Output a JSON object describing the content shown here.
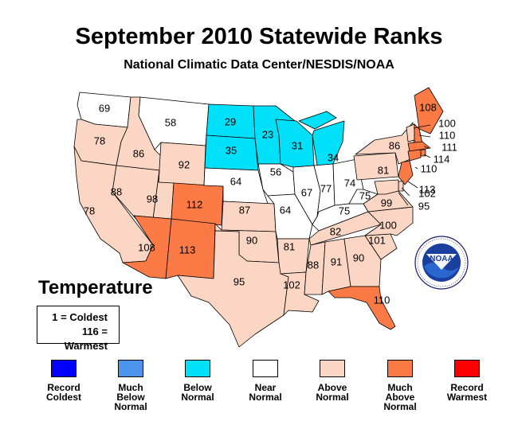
{
  "title": "September 2010 Statewide Ranks",
  "subtitle": "National Climatic Data Center/NESDIS/NOAA",
  "panel_label": "Temperature",
  "key": [
    "1 = Coldest",
    "116 = Warmest"
  ],
  "colors": {
    "record_coldest": "#0000ff",
    "much_below": "#4a94ee",
    "below": "#00e0f8",
    "near": "#ffffff",
    "above": "#fcd6c4",
    "much_above": "#fb7a45",
    "record_warmest": "#ff0000"
  },
  "legend": [
    {
      "label": "Record\nColdest",
      "category": "record_coldest"
    },
    {
      "label": "Much\nBelow\nNormal",
      "category": "much_below"
    },
    {
      "label": "Below\nNormal",
      "category": "below"
    },
    {
      "label": "Near\nNormal",
      "category": "near"
    },
    {
      "label": "Above\nNormal",
      "category": "above"
    },
    {
      "label": "Much\nAbove\nNormal",
      "category": "much_above"
    },
    {
      "label": "Record\nWarmest",
      "category": "record_warmest"
    }
  ],
  "logo_text": "NOAA",
  "states": [
    {
      "state": "WA",
      "rank": "69",
      "category": "near"
    },
    {
      "state": "OR",
      "rank": "78",
      "category": "above"
    },
    {
      "state": "CA",
      "rank": "78",
      "category": "above"
    },
    {
      "state": "ID",
      "rank": "86",
      "category": "above"
    },
    {
      "state": "NV",
      "rank": "88",
      "category": "above"
    },
    {
      "state": "MT",
      "rank": "58",
      "category": "near"
    },
    {
      "state": "WY",
      "rank": "92",
      "category": "above"
    },
    {
      "state": "UT",
      "rank": "98",
      "category": "above"
    },
    {
      "state": "AZ",
      "rank": "108",
      "category": "much_above"
    },
    {
      "state": "CO",
      "rank": "112",
      "category": "much_above"
    },
    {
      "state": "NM",
      "rank": "113",
      "category": "much_above"
    },
    {
      "state": "ND",
      "rank": "29",
      "category": "below"
    },
    {
      "state": "SD",
      "rank": "35",
      "category": "below"
    },
    {
      "state": "NE",
      "rank": "64",
      "category": "near"
    },
    {
      "state": "KS",
      "rank": "87",
      "category": "above"
    },
    {
      "state": "OK",
      "rank": "90",
      "category": "above"
    },
    {
      "state": "TX",
      "rank": "95",
      "category": "above"
    },
    {
      "state": "MN",
      "rank": "23",
      "category": "below"
    },
    {
      "state": "IA",
      "rank": "56",
      "category": "near"
    },
    {
      "state": "MO",
      "rank": "64",
      "category": "near"
    },
    {
      "state": "AR",
      "rank": "81",
      "category": "above"
    },
    {
      "state": "LA",
      "rank": "102",
      "category": "above"
    },
    {
      "state": "WI",
      "rank": "31",
      "category": "below"
    },
    {
      "state": "IL",
      "rank": "67",
      "category": "near"
    },
    {
      "state": "MI",
      "rank": "34",
      "category": "below"
    },
    {
      "state": "IN",
      "rank": "77",
      "category": "near"
    },
    {
      "state": "OH",
      "rank": "74",
      "category": "near"
    },
    {
      "state": "KY",
      "rank": "75",
      "category": "near"
    },
    {
      "state": "TN",
      "rank": "82",
      "category": "above"
    },
    {
      "state": "MS",
      "rank": "88",
      "category": "above"
    },
    {
      "state": "AL",
      "rank": "91",
      "category": "above"
    },
    {
      "state": "GA",
      "rank": "90",
      "category": "above"
    },
    {
      "state": "FL",
      "rank": "110",
      "category": "much_above"
    },
    {
      "state": "SC",
      "rank": "101",
      "category": "above"
    },
    {
      "state": "NC",
      "rank": "100",
      "category": "above"
    },
    {
      "state": "VA",
      "rank": "99",
      "category": "above"
    },
    {
      "state": "WV",
      "rank": "75",
      "category": "near"
    },
    {
      "state": "PA",
      "rank": "81",
      "category": "above"
    },
    {
      "state": "NY",
      "rank": "86",
      "category": "above"
    },
    {
      "state": "ME",
      "rank": "108",
      "category": "much_above"
    },
    {
      "state": "VT",
      "rank": "100",
      "category": "above"
    },
    {
      "state": "NH",
      "rank": "110",
      "category": "much_above"
    },
    {
      "state": "MA",
      "rank": "111",
      "category": "much_above"
    },
    {
      "state": "RI",
      "rank": "114",
      "category": "much_above"
    },
    {
      "state": "CT",
      "rank": "110",
      "category": "much_above"
    },
    {
      "state": "NJ",
      "rank": "113",
      "category": "much_above"
    },
    {
      "state": "DE",
      "rank": "102",
      "category": "above"
    },
    {
      "state": "MD",
      "rank": "95",
      "category": "above"
    }
  ]
}
